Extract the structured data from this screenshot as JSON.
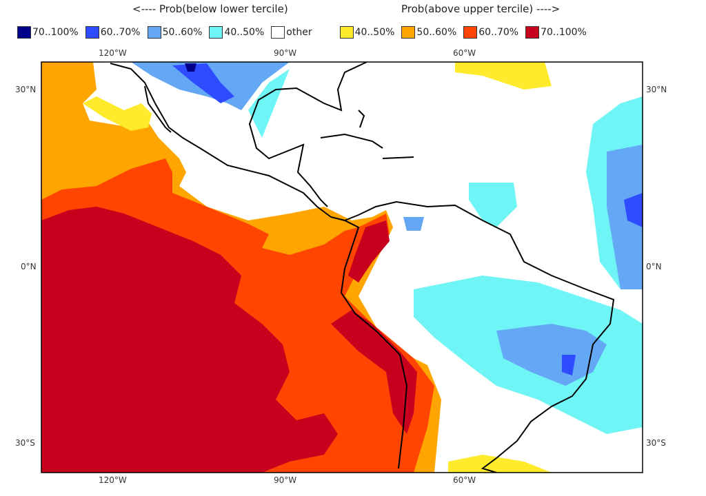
{
  "header": {
    "below_title": "<---- Prob(below lower tercile)",
    "above_title": "Prob(above upper tercile) ---->"
  },
  "legend": [
    {
      "label": "70..100%",
      "color": "#00008b"
    },
    {
      "label": "60..70%",
      "color": "#2e4bff"
    },
    {
      "label": "50..60%",
      "color": "#64a8f5"
    },
    {
      "label": "40..50%",
      "color": "#6ff5f5"
    },
    {
      "label": "other",
      "color": "#ffffff"
    },
    {
      "label": "40..50%",
      "color": "#ffeb2b"
    },
    {
      "label": "50..60%",
      "color": "#ffa500"
    },
    {
      "label": "60..70%",
      "color": "#ff4500"
    },
    {
      "label": "70..100%",
      "color": "#c8001e"
    }
  ],
  "axes": {
    "lon_top": [
      "120°W",
      "90°W",
      "60°W"
    ],
    "lon_bottom": [
      "120°W",
      "90°W",
      "60°W"
    ],
    "lat_left": [
      "30°N",
      "0°N",
      "30°S"
    ],
    "lat_right": [
      "30°N",
      "0°N",
      "30°S"
    ]
  }
}
